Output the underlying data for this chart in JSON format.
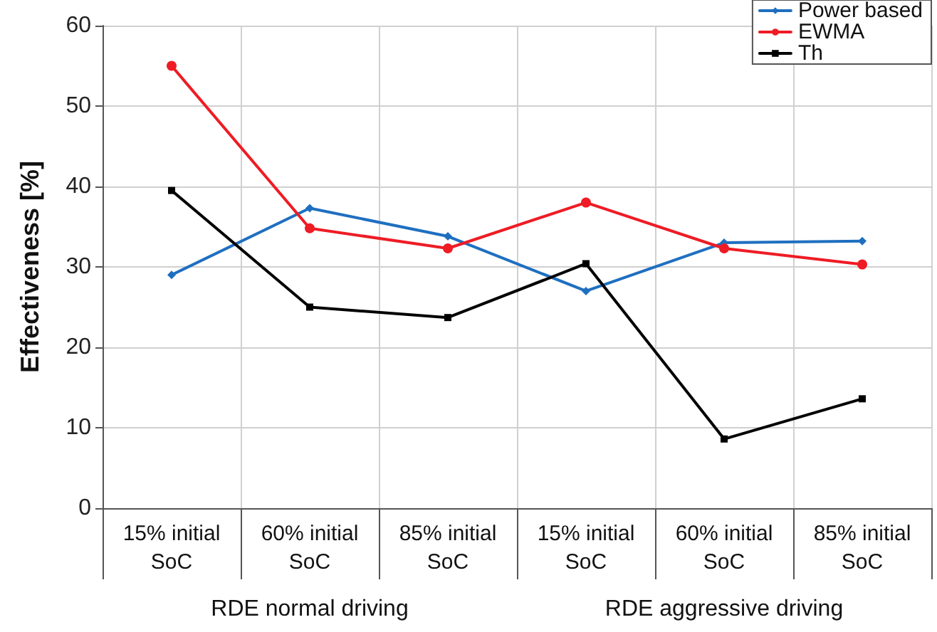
{
  "chart_data": {
    "type": "line",
    "ylabel": "Effectiveness [%]",
    "categories": [
      "15% initial\nSoC",
      "60% initial\nSoC",
      "85% initial\nSoC",
      "15% initial\nSoC",
      "60% initial\nSoC",
      "85% initial\nSoC"
    ],
    "series": [
      {
        "name": "Power based",
        "color": "#1f6fc0",
        "marker": "diamond",
        "values": [
          29,
          37.3,
          33.8,
          27,
          33,
          33.2
        ]
      },
      {
        "name": "EWMA",
        "color": "#ee1c25",
        "marker": "circle",
        "values": [
          55,
          34.8,
          32.3,
          38,
          32.3,
          30.3
        ]
      },
      {
        "name": "Th",
        "color": "#000000",
        "marker": "square",
        "values": [
          39.5,
          25,
          23.7,
          30.4,
          8.6,
          13.6
        ]
      }
    ],
    "annotations": [
      "RDE normal driving",
      "RDE aggressive driving"
    ],
    "ylim": [
      0,
      60
    ],
    "yticks": [
      0,
      10,
      20,
      30,
      40,
      50,
      60
    ],
    "grid": true,
    "legend": "top right",
    "line_style": "solid"
  }
}
